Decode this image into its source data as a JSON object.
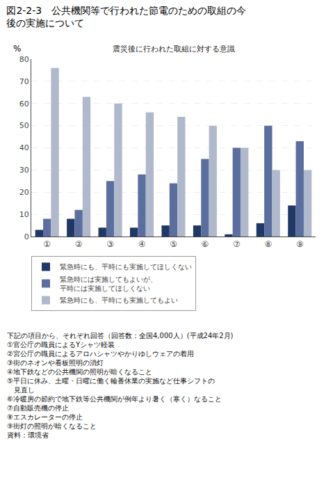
{
  "chart_data": {
    "type": "bar",
    "title": "図2-2-3　公共機関等で行われた節電のための取組の今\n後の実施について",
    "subtitle": "震災後に行われた取組に対する意識",
    "ylabel": "%",
    "categories": [
      "①",
      "②",
      "③",
      "④",
      "⑤",
      "⑥",
      "⑦",
      "⑧",
      "⑨"
    ],
    "series": [
      {
        "name": "緊急時にも、平時にも実施してほしくない",
        "color": "#1f3864",
        "values": [
          3,
          8,
          4,
          4,
          5,
          5,
          1,
          6,
          14
        ]
      },
      {
        "name": "緊急時には実施してもよいが、\n平時には実施してほしくない",
        "color": "#5c6e9e",
        "values": [
          8,
          12,
          25,
          28,
          24,
          35,
          40,
          50,
          43
        ]
      },
      {
        "name": "緊急時にも、平時にも実施してもよい",
        "color": "#b0b8cc",
        "values": [
          76,
          63,
          60,
          56,
          54,
          50,
          40,
          30,
          30
        ]
      }
    ],
    "ylim": [
      0,
      80
    ],
    "yticks": [
      0,
      10,
      20,
      30,
      40,
      50,
      60,
      70,
      80
    ],
    "grid": true,
    "legend": "bottom",
    "annotations": [
      "下記の項目から、それぞれ回答（回答数：全国4,000人）(平成24年2月)",
      "①官公庁の職員によるYシャツ軽装",
      "②宮公庁の職員によるアロハシャツやかりゆしウェアの着用",
      "③街のネオンや看板照明の消灯",
      "④地下鉄などの公共機関の照明が暗くなること",
      "⑤平日に休み、土曜・日曜に働く輪番休業の実施など仕事シフトの",
      "　見直し",
      "⑥冷暖房の節約で地下鉄等公共機関が例年より暑く（寒く）なること",
      "⑦自動販売機の停止",
      "⑧エスカレーターの停止",
      "⑨街灯の照明が暗くなること",
      "資料：環境省"
    ]
  }
}
